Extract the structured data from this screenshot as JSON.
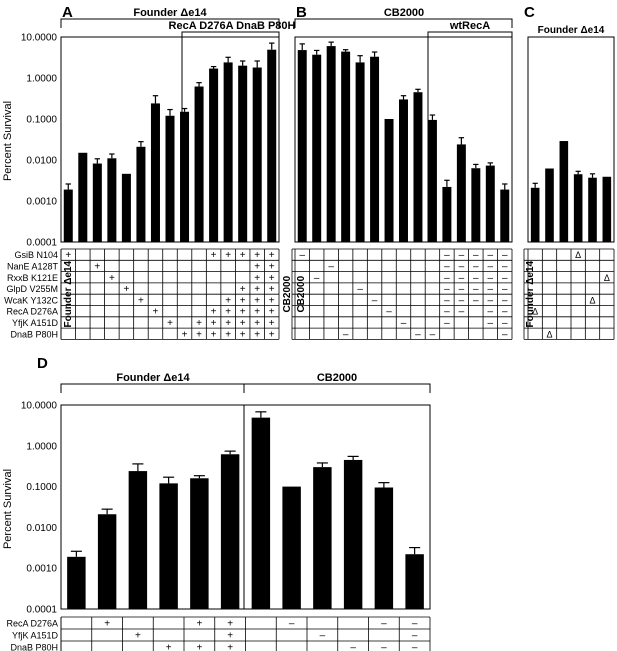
{
  "panel_labels": [
    "A",
    "B",
    "C",
    "D"
  ],
  "ytick_labels": [
    "10.0000",
    "1.0000",
    "0.1000",
    "0.0100",
    "0.0010",
    "0.0001"
  ],
  "ylabel": "Percent Survival",
  "symbols": {
    "plus": "+",
    "minus": "–",
    "delta": "Δ"
  },
  "chart_data": [
    {
      "panel": "A",
      "type": "bar",
      "scale": "log",
      "ylim": [
        0.0001,
        10
      ],
      "ylabel": "Percent Survival",
      "header": "Founder Δe14",
      "subheader": "RecA D276A DnaB P80H",
      "values": [
        0.0019,
        0.015,
        0.0082,
        0.011,
        0.0046,
        0.021,
        0.24,
        0.12,
        0.15,
        0.62,
        1.7,
        2.4,
        2.0,
        1.8,
        4.9
      ],
      "errors": [
        0.0007,
        0.0,
        0.0025,
        0.003,
        0.0,
        0.007,
        0.13,
        0.05,
        0.03,
        0.15,
        0.2,
        0.8,
        0.6,
        0.8,
        2.2
      ],
      "row_labels": [
        "GsiB N104",
        "NanE A128T",
        "RxxB K121E",
        "GlpD V255M",
        "WcaK Y132C",
        "RecA D276A",
        "YfjK A151D",
        "DnaB P80H"
      ],
      "strain_label": "Founder Δe14",
      "strain_label_right": "CB2000",
      "marks": [
        [
          0,
          0,
          "+"
        ],
        [
          2,
          1,
          "+"
        ],
        [
          3,
          2,
          "+"
        ],
        [
          4,
          3,
          "+"
        ],
        [
          5,
          4,
          "+"
        ],
        [
          6,
          5,
          "+"
        ],
        [
          7,
          6,
          "+"
        ],
        [
          8,
          7,
          "+"
        ],
        [
          9,
          6,
          "+"
        ],
        [
          9,
          7,
          "+"
        ],
        [
          10,
          0,
          "+"
        ],
        [
          10,
          5,
          "+"
        ],
        [
          10,
          6,
          "+"
        ],
        [
          10,
          7,
          "+"
        ],
        [
          11,
          0,
          "+"
        ],
        [
          11,
          4,
          "+"
        ],
        [
          11,
          5,
          "+"
        ],
        [
          11,
          6,
          "+"
        ],
        [
          11,
          7,
          "+"
        ],
        [
          12,
          0,
          "+"
        ],
        [
          12,
          3,
          "+"
        ],
        [
          12,
          4,
          "+"
        ],
        [
          12,
          5,
          "+"
        ],
        [
          12,
          6,
          "+"
        ],
        [
          12,
          7,
          "+"
        ],
        [
          13,
          0,
          "+"
        ],
        [
          13,
          1,
          "+"
        ],
        [
          13,
          2,
          "+"
        ],
        [
          13,
          3,
          "+"
        ],
        [
          13,
          4,
          "+"
        ],
        [
          13,
          5,
          "+"
        ],
        [
          13,
          6,
          "+"
        ],
        [
          13,
          7,
          "+"
        ],
        [
          14,
          0,
          "+"
        ],
        [
          14,
          1,
          "+"
        ],
        [
          14,
          2,
          "+"
        ],
        [
          14,
          3,
          "+"
        ],
        [
          14,
          4,
          "+"
        ],
        [
          14,
          5,
          "+"
        ],
        [
          14,
          6,
          "+"
        ],
        [
          14,
          7,
          "+"
        ]
      ]
    },
    {
      "panel": "B",
      "type": "bar",
      "scale": "log",
      "ylim": [
        0.0001,
        10
      ],
      "header": "CB2000",
      "subheader": "wtRecA",
      "values": [
        4.8,
        3.7,
        6.0,
        4.4,
        2.4,
        3.3,
        0.1,
        0.3,
        0.45,
        0.095,
        0.0022,
        0.024,
        0.0063,
        0.0073,
        0.0019
      ],
      "errors": [
        2.0,
        1.0,
        1.5,
        0.5,
        1.1,
        1.0,
        0.0,
        0.07,
        0.08,
        0.03,
        0.001,
        0.011,
        0.0015,
        0.0012,
        0.0007
      ],
      "strain_label": "CB2000",
      "marks": [
        [
          0,
          0,
          "-"
        ],
        [
          1,
          2,
          "-"
        ],
        [
          2,
          1,
          "-"
        ],
        [
          3,
          7,
          "-"
        ],
        [
          4,
          3,
          "-"
        ],
        [
          5,
          4,
          "-"
        ],
        [
          6,
          5,
          "-"
        ],
        [
          7,
          6,
          "-"
        ],
        [
          8,
          7,
          "-"
        ],
        [
          9,
          7,
          "-"
        ],
        [
          10,
          0,
          "-"
        ],
        [
          10,
          1,
          "-"
        ],
        [
          10,
          2,
          "-"
        ],
        [
          10,
          3,
          "-"
        ],
        [
          10,
          4,
          "-"
        ],
        [
          10,
          5,
          "-"
        ],
        [
          10,
          6,
          "-"
        ],
        [
          11,
          0,
          "-"
        ],
        [
          11,
          1,
          "-"
        ],
        [
          11,
          2,
          "-"
        ],
        [
          11,
          3,
          "-"
        ],
        [
          11,
          4,
          "-"
        ],
        [
          11,
          5,
          "-"
        ],
        [
          12,
          0,
          "-"
        ],
        [
          12,
          1,
          "-"
        ],
        [
          12,
          2,
          "-"
        ],
        [
          12,
          3,
          "-"
        ],
        [
          12,
          4,
          "-"
        ],
        [
          13,
          0,
          "-"
        ],
        [
          13,
          1,
          "-"
        ],
        [
          13,
          2,
          "-"
        ],
        [
          13,
          3,
          "-"
        ],
        [
          13,
          4,
          "-"
        ],
        [
          13,
          5,
          "-"
        ],
        [
          13,
          6,
          "-"
        ],
        [
          14,
          0,
          "-"
        ],
        [
          14,
          1,
          "-"
        ],
        [
          14,
          2,
          "-"
        ],
        [
          14,
          3,
          "-"
        ],
        [
          14,
          4,
          "-"
        ],
        [
          14,
          5,
          "-"
        ],
        [
          14,
          6,
          "-"
        ],
        [
          14,
          7,
          "-"
        ]
      ]
    },
    {
      "panel": "C",
      "type": "bar",
      "scale": "log",
      "ylim": [
        0.0001,
        10
      ],
      "header": "Founder Δe14",
      "values": [
        0.0021,
        0.0062,
        0.029,
        0.0045,
        0.0037,
        0.0039
      ],
      "errors": [
        0.0006,
        0.0,
        0.0,
        0.0008,
        0.0009,
        0.0
      ],
      "strain_label": "Founder Δe14",
      "marks": [
        [
          0,
          5,
          "delta"
        ],
        [
          1,
          7,
          "delta"
        ],
        [
          3,
          0,
          "delta"
        ],
        [
          4,
          4,
          "delta"
        ],
        [
          5,
          2,
          "delta"
        ]
      ]
    },
    {
      "panel": "D",
      "type": "bar",
      "scale": "log",
      "ylim": [
        0.0001,
        10
      ],
      "ylabel": "Percent Survival",
      "group_labels": [
        "Founder Δe14",
        "CB2000"
      ],
      "values": [
        0.0019,
        0.021,
        0.24,
        0.12,
        0.16,
        0.62,
        4.9,
        0.1,
        0.3,
        0.45,
        0.095,
        0.0022
      ],
      "errors": [
        0.0007,
        0.007,
        0.12,
        0.05,
        0.025,
        0.12,
        1.9,
        0.0,
        0.08,
        0.1,
        0.03,
        0.001
      ],
      "row_labels": [
        "RecA D276A",
        "YfjK A151D",
        "DnaB P80H"
      ],
      "marks": [
        [
          1,
          0,
          "+"
        ],
        [
          2,
          1,
          "+"
        ],
        [
          3,
          2,
          "+"
        ],
        [
          4,
          0,
          "+"
        ],
        [
          4,
          2,
          "+"
        ],
        [
          5,
          0,
          "+"
        ],
        [
          5,
          1,
          "+"
        ],
        [
          5,
          2,
          "+"
        ],
        [
          7,
          0,
          "-"
        ],
        [
          8,
          1,
          "-"
        ],
        [
          9,
          2,
          "-"
        ],
        [
          10,
          0,
          "-"
        ],
        [
          10,
          2,
          "-"
        ],
        [
          11,
          0,
          "-"
        ],
        [
          11,
          1,
          "-"
        ],
        [
          11,
          2,
          "-"
        ]
      ]
    }
  ]
}
